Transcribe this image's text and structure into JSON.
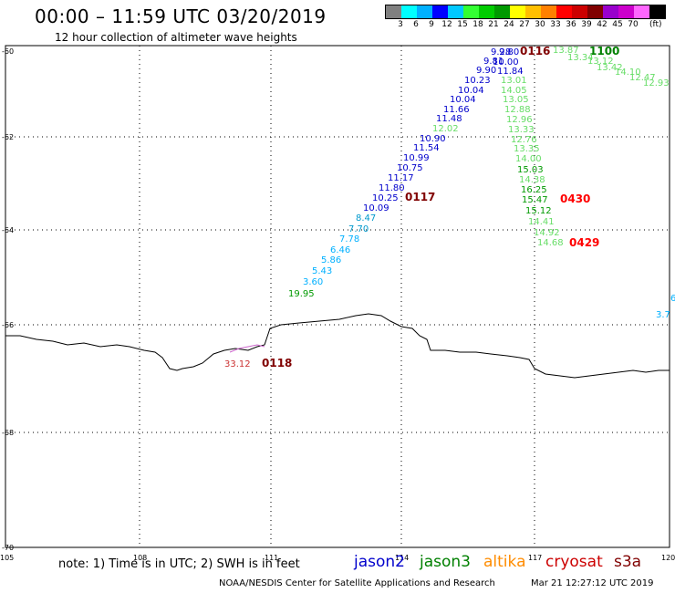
{
  "title": "00:00 – 11:59 UTC 03/20/2019",
  "subtitle": "12 hour collection of altimeter wave heights",
  "legend": {
    "unit": "(ft)",
    "colors": [
      "#808080",
      "#00ffff",
      "#00b0ff",
      "#0000ff",
      "#00c8ff",
      "#33ff33",
      "#00cc00",
      "#009900",
      "#ffff00",
      "#ffbf00",
      "#ff8000",
      "#ff0000",
      "#cc0000",
      "#800000",
      "#9900cc",
      "#cc00cc",
      "#ff66ff",
      "#000000"
    ],
    "labels": [
      "3",
      "6",
      "9",
      "12",
      "15",
      "18",
      "21",
      "24",
      "27",
      "30",
      "33",
      "36",
      "39",
      "42",
      "45",
      "70"
    ]
  },
  "axes": {
    "lat_labels": [
      "-60",
      "-62",
      "-64",
      "-66",
      "-68",
      "-70"
    ],
    "lon_labels": [
      "105",
      "108",
      "111",
      "114",
      "117",
      "120"
    ]
  },
  "track_labels": [
    {
      "text": "0116",
      "color": "#800000"
    },
    {
      "text": "1100",
      "color": "#008000"
    },
    {
      "text": "0117",
      "color": "#800000"
    },
    {
      "text": "0430",
      "color": "#ff0000"
    },
    {
      "text": "0429",
      "color": "#ff0000"
    },
    {
      "text": "0118",
      "color": "#800000"
    }
  ],
  "jason2_values": [
    "9.28",
    "9.80",
    "9.81",
    "10.00",
    "9.90",
    "11.84",
    "10.23",
    "10.04",
    "10.04",
    "11.66",
    "11.48",
    "10.90",
    "11.54",
    "10.99",
    "10.75",
    "11.17",
    "11.80",
    "10.25",
    "10.09",
    "8.47",
    "7.70",
    "7.78",
    "6.46",
    "5.86",
    "5.43",
    "3.60"
  ],
  "jason3_values": [
    "13.01",
    "14.05",
    "13.05",
    "12.88",
    "12.96",
    "13.33",
    "12.76",
    "13.35",
    "14.00",
    "15.03",
    "14.38",
    "16.25",
    "15.47",
    "15.12",
    "14.41",
    "14.92",
    "14.68",
    "19.95"
  ],
  "jason3_light_values": [
    "13.87",
    "13.34",
    "13.12",
    "13.42",
    "14.10",
    "12.47",
    "12.93",
    "12.02"
  ],
  "cryosat_values": [
    "33.12"
  ],
  "edge_values": [
    "6",
    "3.7"
  ],
  "note": "note: 1) Time is in UTC; 2) SWH is in feet",
  "satellites": [
    {
      "name": "jason2",
      "color": "#0000cc"
    },
    {
      "name": "jason3",
      "color": "#008000"
    },
    {
      "name": "altika",
      "color": "#ff8c00"
    },
    {
      "name": "cryosat",
      "color": "#cc0000"
    },
    {
      "name": "s3a",
      "color": "#800000"
    }
  ],
  "credit": "NOAA/NESDIS Center for Satellite Applications and Research",
  "timestamp": "Mar 21 12:27:12 UTC 2019"
}
